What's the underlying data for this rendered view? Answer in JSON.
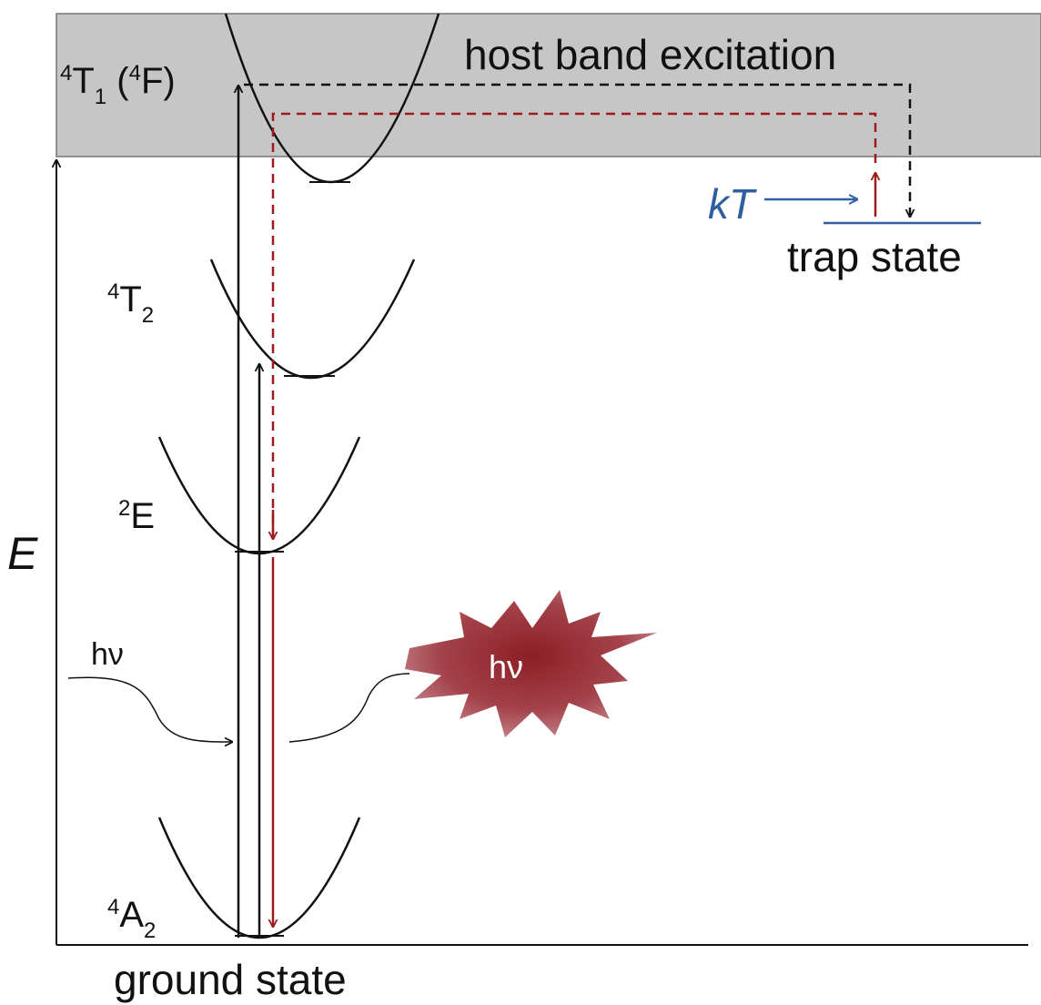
{
  "annotations": {
    "host_band": "host band excitation",
    "trap": "trap state",
    "kt": "kT",
    "ground": "ground state",
    "axis": "E",
    "photon_in": "hν",
    "photon_out": "hν"
  },
  "levels": {
    "t1": [
      "4",
      "T",
      "1",
      " (",
      "4",
      "F)"
    ],
    "t2": [
      "4",
      "T",
      "2"
    ],
    "e": [
      "2",
      "E"
    ],
    "a2": [
      "4",
      "A",
      "2"
    ]
  }
}
